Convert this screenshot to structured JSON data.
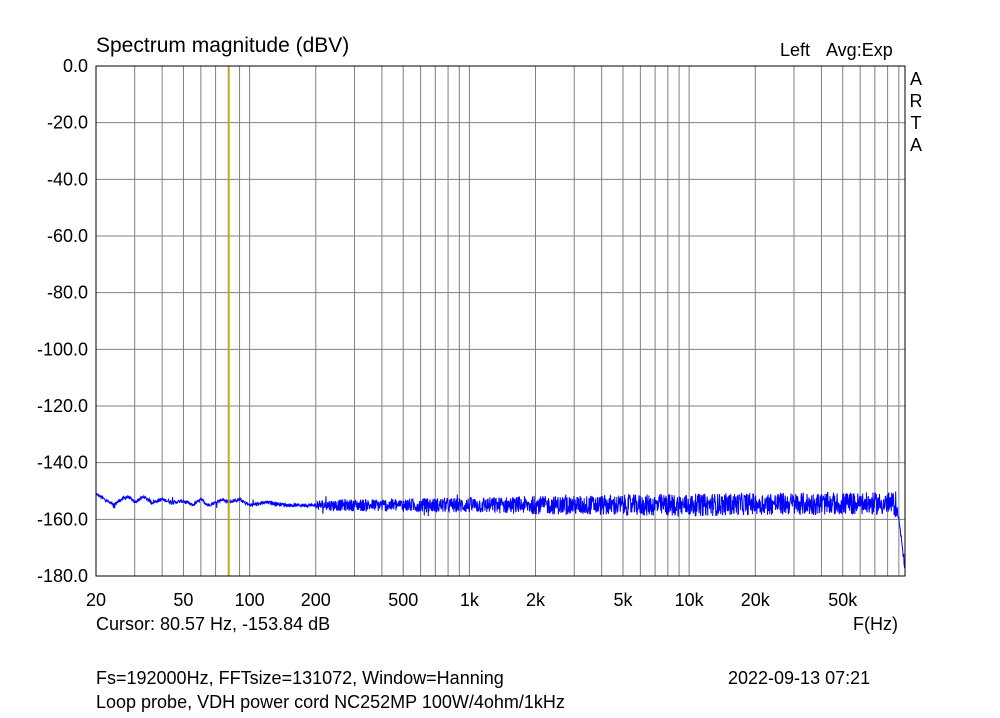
{
  "header": {
    "title": "Spectrum magnitude (dBV)",
    "channel": "Left",
    "averaging": "Avg:Exp",
    "watermark": [
      "A",
      "R",
      "T",
      "A"
    ]
  },
  "footer": {
    "cursor": "Cursor: 80.57 Hz, -153.84 dB",
    "xlabel": "F(Hz)",
    "line1": "Fs=192000Hz, FFTsize=131072, Window=Hanning",
    "line2": "Loop probe, VDH power cord NC252MP 100W/4ohm/1kHz",
    "timestamp": "2022-09-13  07:21"
  },
  "colors": {
    "trace": "#0000ff",
    "cursor": "#c8b400",
    "grid": "#808080",
    "frame": "#000000"
  },
  "chart_data": {
    "type": "line",
    "title": "Spectrum magnitude (dBV)",
    "xlabel": "F(Hz)",
    "ylabel": "",
    "x_scale": "log",
    "xlim": [
      20,
      96000
    ],
    "ylim": [
      -180,
      0
    ],
    "grid": true,
    "y_ticks": [
      "0.0",
      "-20.0",
      "-40.0",
      "-60.0",
      "-80.0",
      "-100.0",
      "-120.0",
      "-140.0",
      "-160.0",
      "-180.0"
    ],
    "x_ticks": [
      {
        "value": 20,
        "label": "20"
      },
      {
        "value": 50,
        "label": "50"
      },
      {
        "value": 100,
        "label": "100"
      },
      {
        "value": 200,
        "label": "200"
      },
      {
        "value": 500,
        "label": "500"
      },
      {
        "value": 1000,
        "label": "1k"
      },
      {
        "value": 2000,
        "label": "2k"
      },
      {
        "value": 5000,
        "label": "5k"
      },
      {
        "value": 10000,
        "label": "10k"
      },
      {
        "value": 20000,
        "label": "20k"
      },
      {
        "value": 50000,
        "label": "50k"
      }
    ],
    "cursor": {
      "frequency_hz": 80.57,
      "level_db": -153.84
    },
    "series": [
      {
        "points": [
          [
            20,
            -151
          ],
          [
            22,
            -153
          ],
          [
            24,
            -155
          ],
          [
            26,
            -153
          ],
          [
            28,
            -152
          ],
          [
            30,
            -154
          ],
          [
            33,
            -152
          ],
          [
            36,
            -154
          ],
          [
            40,
            -153
          ],
          [
            45,
            -154
          ],
          [
            50,
            -153.5
          ],
          [
            55,
            -155
          ],
          [
            60,
            -153
          ],
          [
            65,
            -155
          ],
          [
            70,
            -154
          ],
          [
            75,
            -153
          ],
          [
            80.57,
            -153.84
          ],
          [
            90,
            -153
          ],
          [
            100,
            -155
          ],
          [
            120,
            -154
          ],
          [
            150,
            -155
          ],
          [
            200,
            -155
          ],
          [
            300,
            -155
          ],
          [
            500,
            -155
          ],
          [
            1000,
            -155
          ],
          [
            2000,
            -155
          ],
          [
            5000,
            -155
          ],
          [
            10000,
            -155
          ],
          [
            20000,
            -154.5
          ],
          [
            50000,
            -154.5
          ],
          [
            85000,
            -154.5
          ],
          [
            88000,
            -156
          ],
          [
            90000,
            -160
          ],
          [
            92000,
            -166
          ],
          [
            94000,
            -172
          ],
          [
            96000,
            -177
          ]
        ]
      }
    ],
    "noise_band_db": [
      -159,
      -151
    ]
  }
}
